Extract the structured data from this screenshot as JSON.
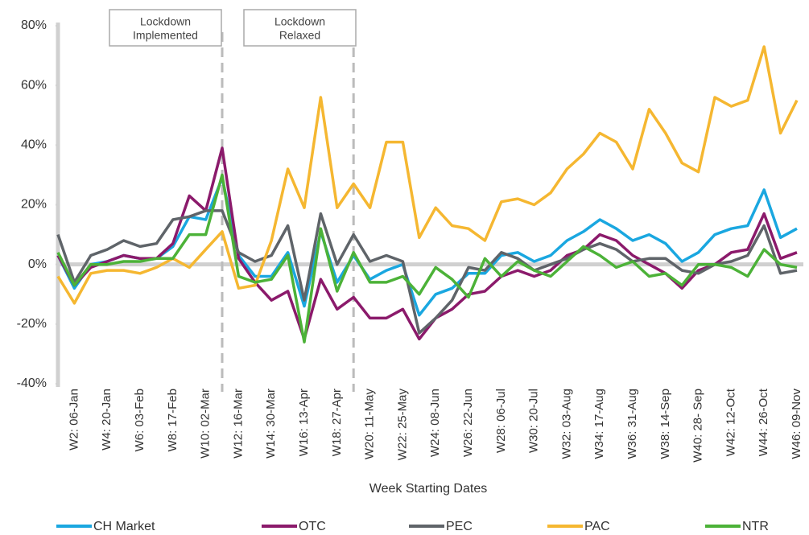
{
  "chart_data": {
    "type": "line",
    "x_label": "Week Starting Dates",
    "annotations": [
      {
        "lines": [
          "Lockdown",
          "Implemented"
        ]
      },
      {
        "lines": [
          "Lockdown",
          "Relaxed"
        ]
      }
    ],
    "categories": [
      null,
      "W2: 06-Jan",
      null,
      "W4: 20-Jan",
      null,
      "W6: 03-Feb",
      null,
      "W8: 17-Feb",
      null,
      "W10: 02-Mar",
      null,
      "W12: 16-Mar",
      null,
      "W14: 30-Mar",
      null,
      "W16: 13-Apr",
      null,
      "W18: 27-Apr",
      null,
      "W20: 11-May",
      null,
      "W22: 25-May",
      null,
      "W24: 08-Jun",
      null,
      "W26: 22-Jun",
      null,
      "W28: 06-Jul",
      null,
      "W30: 20-Jul",
      null,
      "W32: 03-Aug",
      null,
      "W34: 17-Aug",
      null,
      "W36: 31-Aug",
      null,
      "W38: 14-Sep",
      null,
      "W40: 28- Sep",
      null,
      "W42: 12-Oct",
      null,
      "W44: 26-Oct",
      null,
      "W46: 09-Nov"
    ],
    "ylim": [
      -40,
      80
    ],
    "yticks": [
      {
        "value": -40,
        "label": "-40%"
      },
      {
        "value": -20,
        "label": "-20%"
      },
      {
        "value": 0,
        "label": "0%"
      },
      {
        "value": 20,
        "label": "20%"
      },
      {
        "value": 40,
        "label": "40%"
      },
      {
        "value": 60,
        "label": "60%"
      },
      {
        "value": 80,
        "label": "80%"
      }
    ],
    "grid": false,
    "legend": "bottom",
    "series": [
      {
        "name": "CH Market",
        "color": "#1aa7e0",
        "values": [
          3,
          -8,
          0,
          1,
          3,
          2,
          2,
          6,
          16,
          15,
          29,
          3,
          -4,
          -4,
          4,
          -14,
          11,
          -6,
          3,
          -5,
          -2,
          0,
          -17,
          -10,
          -8,
          -3,
          -3,
          3,
          4,
          1,
          3,
          8,
          11,
          15,
          12,
          8,
          10,
          7,
          1,
          4,
          10,
          12,
          13,
          25,
          9,
          12
        ]
      },
      {
        "name": "OTC",
        "color": "#8b1a6b",
        "values": [
          3,
          -7,
          -1,
          1,
          3,
          2,
          2,
          7,
          23,
          18,
          39,
          2,
          -6,
          -12,
          -9,
          -25,
          -5,
          -15,
          -11,
          -18,
          -18,
          -15,
          -25,
          -18,
          -15,
          -10,
          -9,
          -4,
          -2,
          -4,
          -2,
          3,
          5,
          10,
          8,
          3,
          0,
          -3,
          -8,
          -2,
          0,
          4,
          5,
          17,
          2,
          4
        ]
      },
      {
        "name": "PEC",
        "color": "#5f6469",
        "values": [
          10,
          -6,
          3,
          5,
          8,
          6,
          7,
          15,
          16,
          18,
          18,
          4,
          1,
          3,
          13,
          -12,
          17,
          0,
          10,
          1,
          3,
          1,
          -23,
          -18,
          -12,
          -1,
          -2,
          4,
          2,
          -2,
          0,
          2,
          5,
          7,
          5,
          1,
          2,
          2,
          -2,
          -3,
          0,
          1,
          3,
          13,
          -3,
          -2
        ]
      },
      {
        "name": "PAC",
        "color": "#f5b731",
        "values": [
          -4,
          -13,
          -3,
          -2,
          -2,
          -3,
          -1,
          2,
          -1,
          5,
          11,
          -8,
          -7,
          8,
          32,
          19,
          56,
          19,
          27,
          19,
          41,
          41,
          9,
          19,
          13,
          12,
          8,
          21,
          22,
          20,
          24,
          32,
          37,
          44,
          41,
          32,
          52,
          44,
          34,
          31,
          56,
          53,
          55,
          73,
          44,
          55
        ]
      },
      {
        "name": "NTR",
        "color": "#4cb238",
        "values": [
          4,
          -7,
          0,
          0,
          1,
          1,
          2,
          2,
          10,
          10,
          30,
          -4,
          -6,
          -5,
          3,
          -26,
          12,
          -9,
          4,
          -6,
          -6,
          -4,
          -10,
          -1,
          -5,
          -11,
          2,
          -4,
          1,
          -2,
          -4,
          1,
          6,
          3,
          -1,
          1,
          -4,
          -3,
          -7,
          0,
          0,
          -1,
          -4,
          5,
          0,
          -1
        ]
      }
    ]
  }
}
